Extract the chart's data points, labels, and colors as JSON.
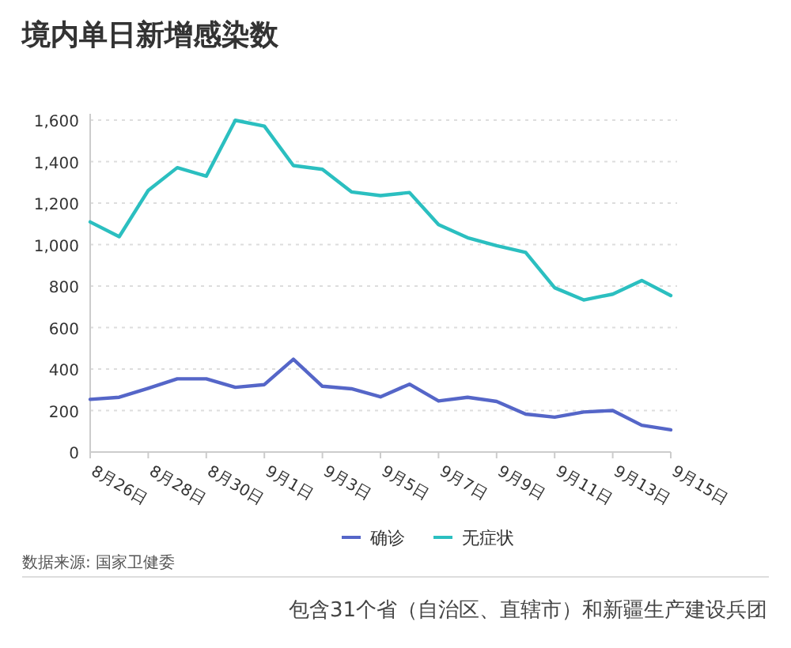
{
  "chart_data": {
    "type": "line",
    "title": "境内单日新增感染数",
    "categories": [
      "8月26日",
      null,
      "8月28日",
      null,
      "8月30日",
      null,
      "9月1日",
      null,
      "9月3日",
      null,
      "9月5日",
      null,
      "9月7日",
      null,
      "9月9日",
      null,
      "9月11日",
      null,
      "9月13日",
      null,
      "9月15日"
    ],
    "series": [
      {
        "name": "确诊",
        "color": "#5566c8",
        "values": [
          254,
          264,
          307,
          353,
          353,
          312,
          325,
          447,
          317,
          305,
          266,
          327,
          246,
          264,
          244,
          183,
          168,
          193,
          200,
          129,
          107
        ]
      },
      {
        "name": "无症状",
        "color": "#2bbfc0",
        "values": [
          1109,
          1038,
          1261,
          1371,
          1330,
          1599,
          1571,
          1381,
          1363,
          1254,
          1236,
          1251,
          1096,
          1033,
          995,
          962,
          792,
          733,
          761,
          827,
          754
        ]
      }
    ],
    "ylim": [
      0,
      1600
    ],
    "yticks": [
      {
        "value": 0,
        "label": "0"
      },
      {
        "value": 200,
        "label": "200"
      },
      {
        "value": 400,
        "label": "400"
      },
      {
        "value": 600,
        "label": "600"
      },
      {
        "value": 800,
        "label": "800"
      },
      {
        "value": 1000,
        "label": "1,000"
      },
      {
        "value": 1200,
        "label": "1,200"
      },
      {
        "value": 1400,
        "label": "1,400"
      },
      {
        "value": 1600,
        "label": "1,600"
      }
    ],
    "grid": "y",
    "legend": "bottom",
    "marker": "none",
    "line_style": "solid",
    "annotations": [
      "数据来源: 国家卫健委",
      "包含31个省（自治区、直辖市）和新疆生产建设兵团"
    ]
  }
}
